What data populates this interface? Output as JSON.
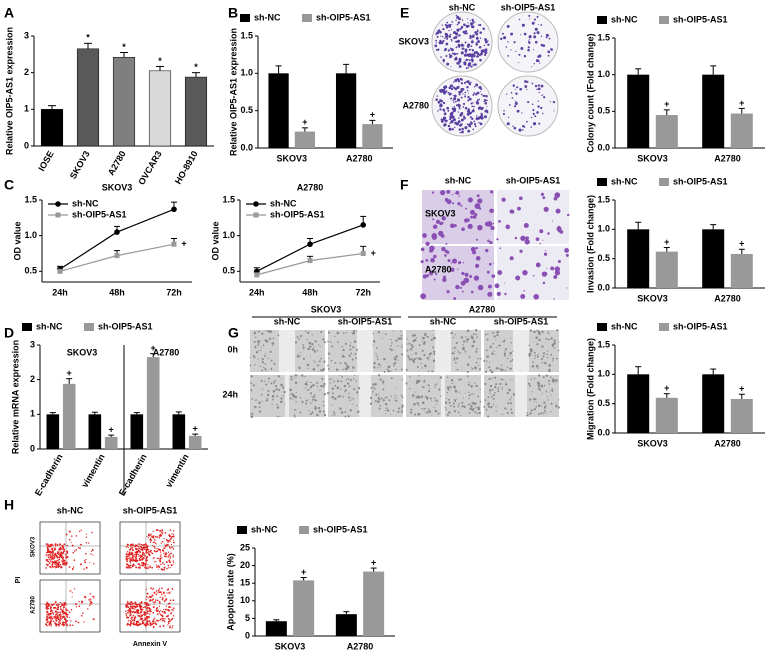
{
  "letters": [
    "A",
    "B",
    "C",
    "D",
    "E",
    "F",
    "G",
    "H"
  ],
  "images": {
    "E": {
      "cols": [
        "sh-NC",
        "sh-OIP5-AS1"
      ],
      "rows": [
        "SKOV3",
        "A2780"
      ]
    },
    "F": {
      "cols": [
        "sh-NC",
        "sh-OIP5-AS1"
      ],
      "rows": [
        "SKOV3",
        "A2780"
      ]
    },
    "G": {
      "groups": [
        "SKOV3",
        "A2780"
      ],
      "cols": [
        "sh-NC",
        "sh-OIP5-AS1",
        "sh-NC",
        "sh-OIP5-AS1"
      ],
      "rows": [
        "0h",
        "24h"
      ]
    },
    "H": {
      "cols": [
        "sh-NC",
        "sh-OIP5-AS1"
      ],
      "rows": [
        "SKOV3",
        "A2780"
      ],
      "xlabel": "Annexin V",
      "ylabel": "PI"
    }
  },
  "chart_data": [
    {
      "type": "bar",
      "ylabel": "Relative OIP5-AS1 expression",
      "categories": [
        "IOSE",
        "SKOV3",
        "A2780",
        "OVCAR3",
        "HO-8910"
      ],
      "values": [
        1.0,
        2.65,
        2.42,
        2.05,
        1.88
      ],
      "errors": [
        0.1,
        0.15,
        0.13,
        0.12,
        0.12
      ],
      "colors": [
        "#000000",
        "#595959",
        "#7f7f7f",
        "#d9d9d9",
        "#595959"
      ],
      "marks": [
        null,
        "*",
        "*",
        "*",
        "*"
      ],
      "ylim": [
        0,
        3
      ],
      "yticks": [
        0,
        1,
        2,
        3
      ]
    },
    {
      "type": "grouped_bar",
      "ylabel": "Relative OIP5-AS1 expression",
      "categories": [
        "SKOV3",
        "A2780"
      ],
      "series": [
        {
          "name": "sh-NC",
          "color": "#000000",
          "values": [
            1.0,
            1.0
          ],
          "errors": [
            0.1,
            0.12
          ]
        },
        {
          "name": "sh-OIP5-AS1",
          "color": "#999999",
          "values": [
            0.22,
            0.32
          ],
          "errors": [
            0.05,
            0.05
          ],
          "marks": [
            "+",
            "+"
          ]
        }
      ],
      "ylim": [
        0,
        1.5
      ],
      "yticks": [
        {
          "value": 0,
          "label": "0.0"
        },
        0.5,
        {
          "value": 1,
          "label": "1.0"
        },
        1.5
      ]
    },
    {
      "type": "grouped_bar",
      "ylabel": "Colony count (Fold change)",
      "categories": [
        "SKOV3",
        "A2780"
      ],
      "series": [
        {
          "name": "sh-NC",
          "color": "#000000",
          "values": [
            1.0,
            1.0
          ],
          "errors": [
            0.08,
            0.12
          ]
        },
        {
          "name": "sh-OIP5-AS1",
          "color": "#999999",
          "values": [
            0.45,
            0.47
          ],
          "errors": [
            0.07,
            0.07
          ],
          "marks": [
            "+",
            "+"
          ]
        }
      ],
      "ylim": [
        0,
        1.5
      ],
      "yticks": [
        {
          "value": 0,
          "label": "0.0"
        },
        0.5,
        {
          "value": 1,
          "label": "1.0"
        },
        1.5
      ]
    },
    {
      "type": "line",
      "title": "SKOV3",
      "ylabel": "OD value",
      "categories": [
        "24h",
        "48h",
        "72h"
      ],
      "series": [
        {
          "name": "sh-NC",
          "color": "#000000",
          "values": [
            0.53,
            1.05,
            1.37
          ],
          "errors": [
            0.04,
            0.08,
            0.1
          ]
        },
        {
          "name": "sh-OIP5-AS1",
          "color": "#999999",
          "values": [
            0.5,
            0.72,
            0.88
          ],
          "errors": [
            0.03,
            0.07,
            0.08
          ],
          "annotation": "+"
        }
      ],
      "ylim": [
        0.35,
        1.5
      ],
      "yticks": [
        0.5,
        {
          "value": 1,
          "label": "1.0"
        },
        1.5
      ]
    },
    {
      "type": "line",
      "title": "A2780",
      "ylabel": "OD value",
      "categories": [
        "24h",
        "48h",
        "72h"
      ],
      "series": [
        {
          "name": "sh-NC",
          "color": "#000000",
          "values": [
            0.5,
            0.88,
            1.15
          ],
          "errors": [
            0.05,
            0.08,
            0.12
          ]
        },
        {
          "name": "sh-OIP5-AS1",
          "color": "#999999",
          "values": [
            0.45,
            0.65,
            0.75
          ],
          "errors": [
            0.04,
            0.06,
            0.1
          ],
          "annotation": "+"
        }
      ],
      "ylim": [
        0.35,
        1.5
      ],
      "yticks": [
        0.5,
        {
          "value": 1,
          "label": "1.0"
        },
        1.5
      ]
    },
    {
      "type": "grouped_bar",
      "ylabel": "Invasion (Fold change)",
      "categories": [
        "SKOV3",
        "A2780"
      ],
      "series": [
        {
          "name": "sh-NC",
          "color": "#000000",
          "values": [
            1.0,
            1.0
          ],
          "errors": [
            0.12,
            0.08
          ]
        },
        {
          "name": "sh-OIP5-AS1",
          "color": "#999999",
          "values": [
            0.62,
            0.58
          ],
          "errors": [
            0.07,
            0.08
          ],
          "marks": [
            "+",
            "+"
          ]
        }
      ],
      "ylim": [
        0,
        1.5
      ],
      "yticks": [
        {
          "value": 0,
          "label": "0.0"
        },
        0.5,
        {
          "value": 1,
          "label": "1.0"
        },
        1.5
      ]
    },
    {
      "type": "grouped_bar",
      "ylabel": "Relative mRNA expression",
      "categories": [
        "E-cadherin",
        "vimentin",
        "E-cadherin",
        "vimentin"
      ],
      "group_labels": [
        "SKOV3",
        "A2780"
      ],
      "series": [
        {
          "name": "sh-NC",
          "color": "#000000",
          "values": [
            1,
            1,
            1,
            1
          ],
          "errors": [
            0.05,
            0.06,
            0.05,
            0.07
          ]
        },
        {
          "name": "sh-OIP5-AS1",
          "color": "#999999",
          "values": [
            1.88,
            0.35,
            2.65,
            0.38
          ],
          "errors": [
            0.15,
            0.05,
            0.1,
            0.05
          ],
          "marks": [
            "+",
            "+",
            "+",
            "+"
          ]
        }
      ],
      "ylim": [
        0,
        3
      ],
      "yticks": [
        0,
        1,
        2,
        3
      ]
    },
    {
      "type": "grouped_bar",
      "ylabel": "Migration (Fold change)",
      "categories": [
        "SKOV3",
        "A2780"
      ],
      "series": [
        {
          "name": "sh-NC",
          "color": "#000000",
          "values": [
            1.0,
            1.0
          ],
          "errors": [
            0.13,
            0.09
          ]
        },
        {
          "name": "sh-OIP5-AS1",
          "color": "#999999",
          "values": [
            0.6,
            0.58
          ],
          "errors": [
            0.07,
            0.08
          ],
          "marks": [
            "+",
            "+"
          ]
        }
      ],
      "ylim": [
        0,
        1.5
      ],
      "yticks": [
        {
          "value": 0,
          "label": "0.0"
        },
        0.5,
        {
          "value": 1,
          "label": "1.0"
        },
        1.5
      ]
    },
    {
      "type": "grouped_bar",
      "ylabel": "Apoptotic rate (%)",
      "categories": [
        "SKOV3",
        "A2780"
      ],
      "series": [
        {
          "name": "sh-NC",
          "color": "#000000",
          "values": [
            4.2,
            6.2
          ],
          "errors": [
            0.4,
            0.7
          ]
        },
        {
          "name": "sh-OIP5-AS1",
          "color": "#999999",
          "values": [
            15.8,
            18.3
          ],
          "errors": [
            0.8,
            1.0
          ],
          "marks": [
            "+",
            "+"
          ]
        }
      ],
      "ylim": [
        0,
        25
      ],
      "yticks": [
        0,
        5,
        10,
        15,
        20,
        25
      ]
    }
  ]
}
